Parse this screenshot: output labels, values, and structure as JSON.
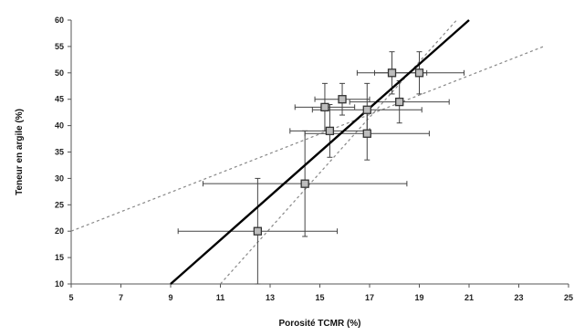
{
  "chart_data": {
    "type": "scatter",
    "xlabel": "Porosité TCMR (%)",
    "ylabel": "Teneur en argile (%)",
    "xlim": [
      5,
      25
    ],
    "ylim": [
      10,
      60
    ],
    "x_ticks": [
      "5",
      "7",
      "9",
      "11",
      "13",
      "15",
      "17",
      "19",
      "21",
      "23",
      "25"
    ],
    "y_ticks": [
      "10",
      "15",
      "20",
      "25",
      "30",
      "35",
      "40",
      "45",
      "50",
      "55",
      "60"
    ],
    "points": [
      {
        "x": 12.5,
        "y": 20,
        "xerr": 3.2,
        "yerr": 10
      },
      {
        "x": 14.4,
        "y": 29,
        "xerr": 4.1,
        "yerr": 10
      },
      {
        "x": 15.4,
        "y": 39,
        "xerr": 1.6,
        "yerr": 5
      },
      {
        "x": 16.9,
        "y": 38.5,
        "xerr": 2.5,
        "yerr": 5
      },
      {
        "x": 15.2,
        "y": 43.5,
        "xerr": 1.2,
        "yerr": 4.5
      },
      {
        "x": 15.9,
        "y": 45,
        "xerr": 1.1,
        "yerr": 3
      },
      {
        "x": 16.9,
        "y": 43,
        "xerr": 2.2,
        "yerr": 5
      },
      {
        "x": 17.9,
        "y": 50,
        "xerr": 1.4,
        "yerr": 4
      },
      {
        "x": 18.2,
        "y": 44.5,
        "xerr": 2,
        "yerr": 4
      },
      {
        "x": 19,
        "y": 50,
        "xerr": 1.8,
        "yerr": 4
      }
    ],
    "fit_line": {
      "x": [
        9,
        21
      ],
      "y": [
        10,
        60
      ]
    },
    "confidence_bands": [
      {
        "x": [
          11,
          20.5
        ],
        "y": [
          10,
          60
        ]
      },
      {
        "x": [
          5,
          24
        ],
        "y": [
          20,
          55
        ]
      }
    ],
    "grid": false
  }
}
